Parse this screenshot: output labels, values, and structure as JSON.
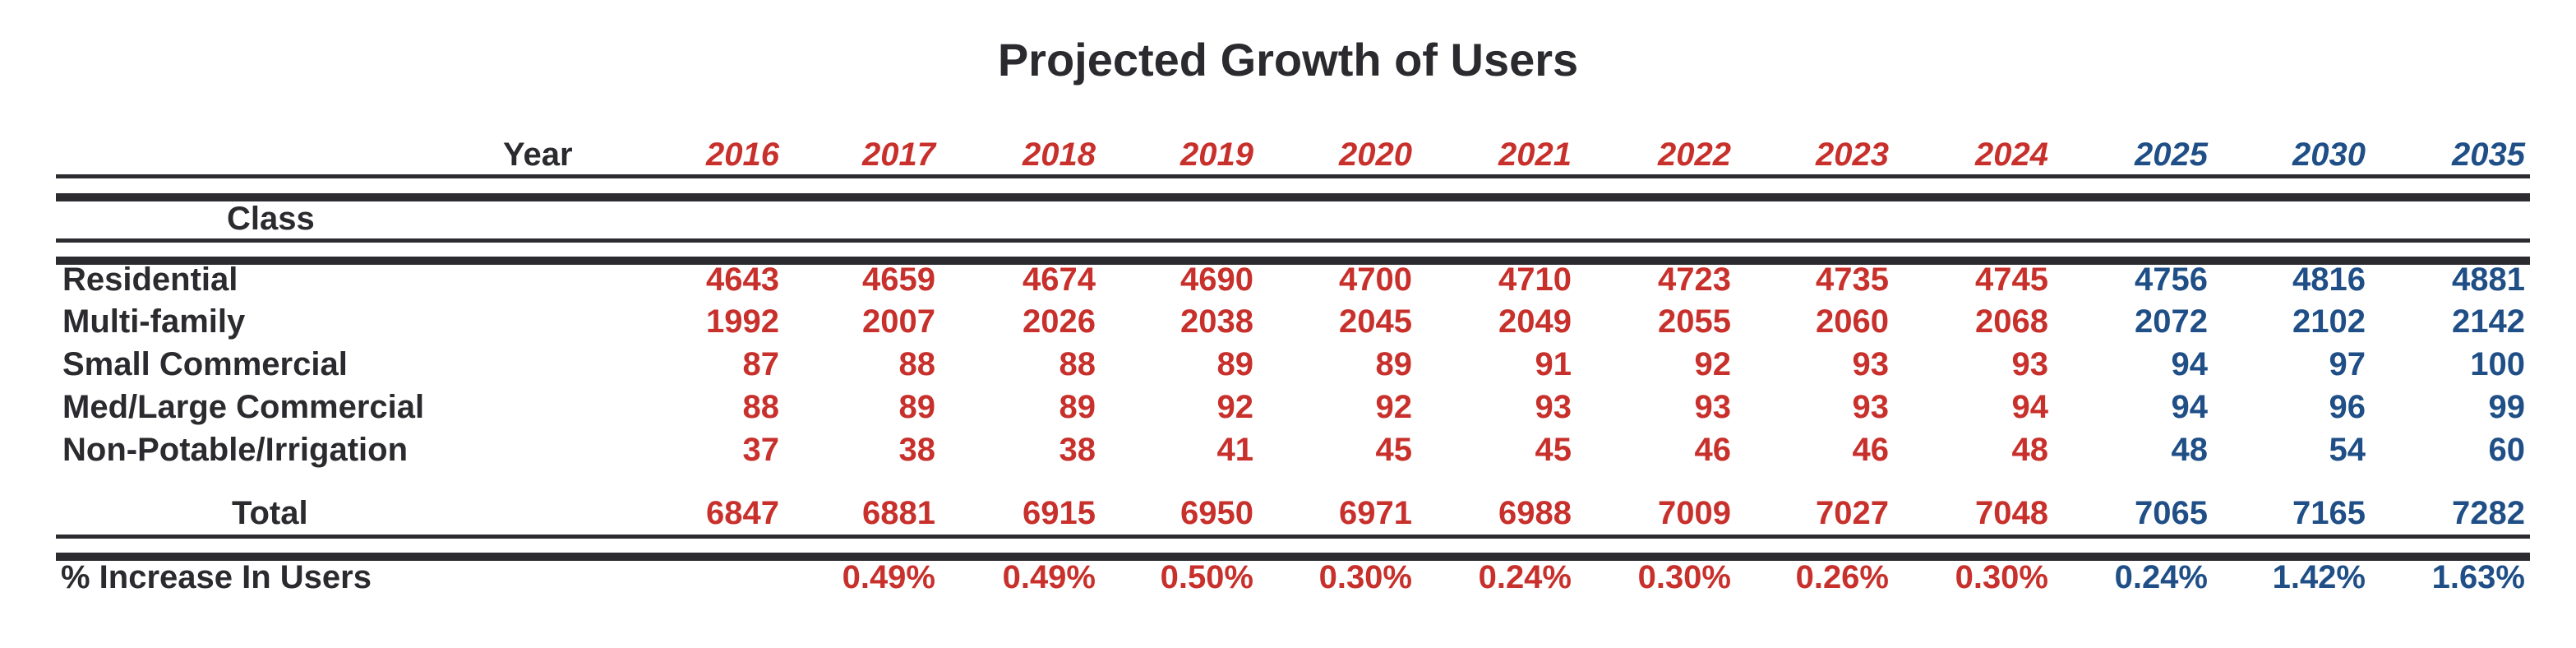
{
  "title": "Projected Growth of Users",
  "header": {
    "year_label": "Year",
    "class_label": "Class"
  },
  "colors": {
    "historical": "#c8302c",
    "projected": "#1f4f86",
    "text": "#2b2b2f"
  },
  "years": [
    "2016",
    "2017",
    "2018",
    "2019",
    "2020",
    "2021",
    "2022",
    "2023",
    "2024",
    "2025",
    "2030",
    "2035"
  ],
  "year_color_groups": [
    "red",
    "red",
    "red",
    "red",
    "red",
    "red",
    "red",
    "red",
    "red",
    "blue",
    "blue",
    "blue"
  ],
  "rows": [
    {
      "label": "Residential",
      "values": [
        "4643",
        "4659",
        "4674",
        "4690",
        "4700",
        "4710",
        "4723",
        "4735",
        "4745",
        "4756",
        "4816",
        "4881"
      ]
    },
    {
      "label": "Multi-family",
      "values": [
        "1992",
        "2007",
        "2026",
        "2038",
        "2045",
        "2049",
        "2055",
        "2060",
        "2068",
        "2072",
        "2102",
        "2142"
      ]
    },
    {
      "label": "Small Commercial",
      "values": [
        "87",
        "88",
        "88",
        "89",
        "89",
        "91",
        "92",
        "93",
        "93",
        "94",
        "97",
        "100"
      ]
    },
    {
      "label": "Med/Large Commercial",
      "values": [
        "88",
        "89",
        "89",
        "92",
        "92",
        "93",
        "93",
        "93",
        "94",
        "94",
        "96",
        "99"
      ]
    },
    {
      "label": "Non-Potable/Irrigation",
      "values": [
        "37",
        "38",
        "38",
        "41",
        "45",
        "45",
        "46",
        "46",
        "48",
        "48",
        "54",
        "60"
      ]
    }
  ],
  "total": {
    "label": "Total",
    "values": [
      "6847",
      "6881",
      "6915",
      "6950",
      "6971",
      "6988",
      "7009",
      "7027",
      "7048",
      "7065",
      "7165",
      "7282"
    ]
  },
  "increase": {
    "label": "% Increase In Users",
    "values": [
      "",
      "0.49%",
      "0.49%",
      "0.50%",
      "0.30%",
      "0.24%",
      "0.30%",
      "0.26%",
      "0.30%",
      "0.24%",
      "1.42%",
      "1.63%"
    ]
  },
  "chart_data": {
    "type": "table",
    "title": "Projected Growth of Users",
    "columns": [
      "Class",
      "2016",
      "2017",
      "2018",
      "2019",
      "2020",
      "2021",
      "2022",
      "2023",
      "2024",
      "2025",
      "2030",
      "2035"
    ],
    "rows": [
      [
        "Residential",
        4643,
        4659,
        4674,
        4690,
        4700,
        4710,
        4723,
        4735,
        4745,
        4756,
        4816,
        4881
      ],
      [
        "Multi-family",
        1992,
        2007,
        2026,
        2038,
        2045,
        2049,
        2055,
        2060,
        2068,
        2072,
        2102,
        2142
      ],
      [
        "Small Commercial",
        87,
        88,
        88,
        89,
        89,
        91,
        92,
        93,
        93,
        94,
        97,
        100
      ],
      [
        "Med/Large Commercial",
        88,
        89,
        89,
        92,
        92,
        93,
        93,
        93,
        94,
        94,
        96,
        99
      ],
      [
        "Non-Potable/Irrigation",
        37,
        38,
        38,
        41,
        45,
        45,
        46,
        46,
        48,
        48,
        54,
        60
      ],
      [
        "Total",
        6847,
        6881,
        6915,
        6950,
        6971,
        6988,
        7009,
        7027,
        7048,
        7065,
        7165,
        7282
      ],
      [
        "% Increase In Users",
        "",
        "0.49%",
        "0.49%",
        "0.50%",
        "0.30%",
        "0.24%",
        "0.30%",
        "0.26%",
        "0.30%",
        "0.24%",
        "1.42%",
        "1.63%"
      ]
    ]
  }
}
